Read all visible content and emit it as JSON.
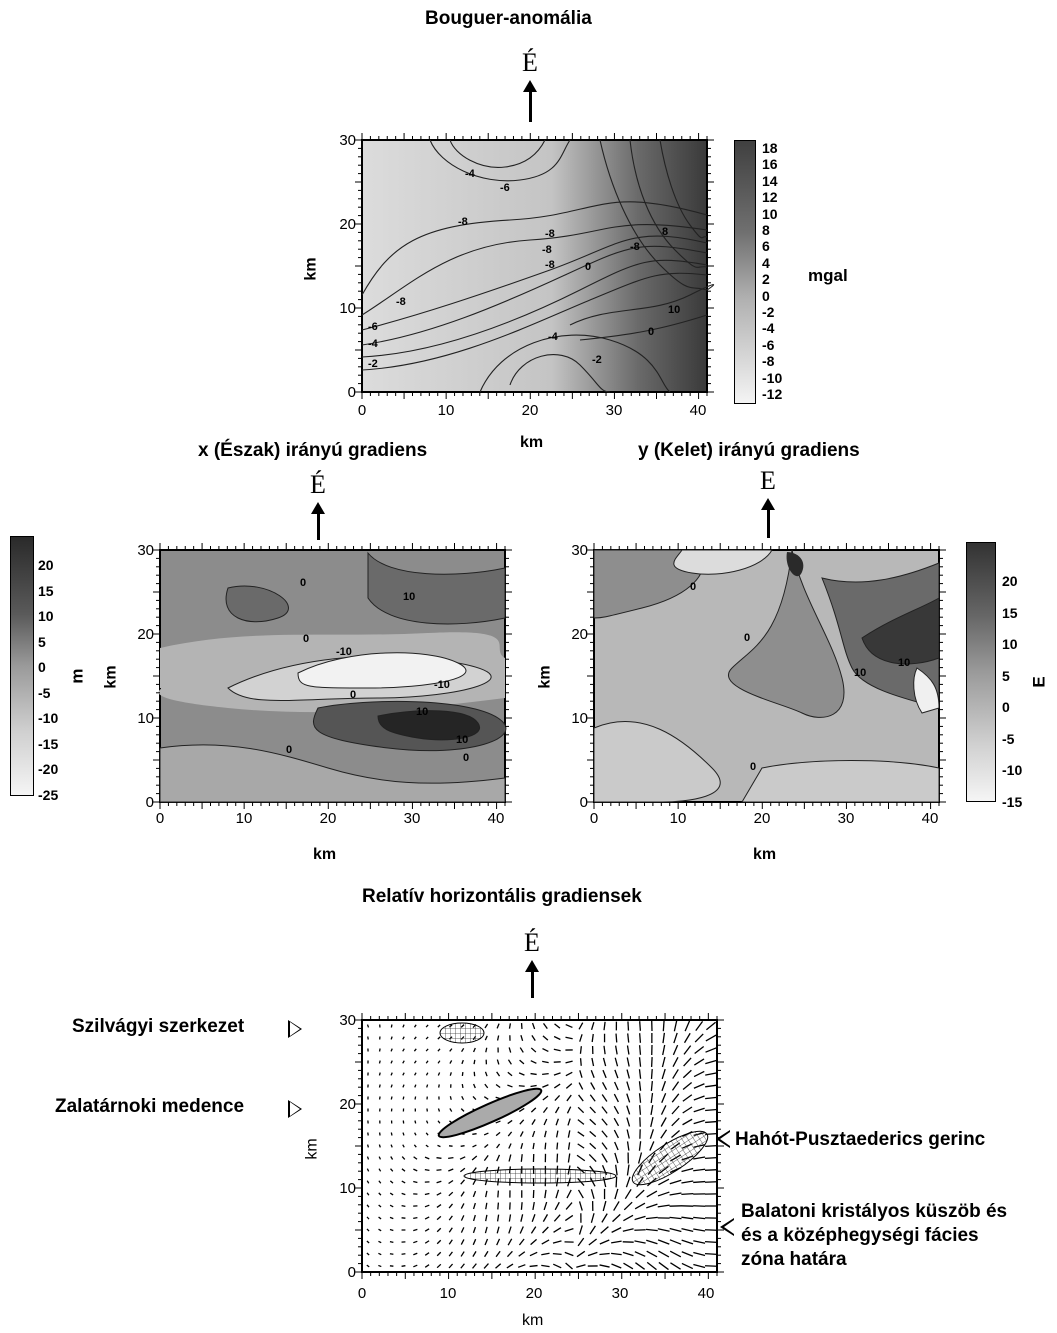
{
  "north_label": "É",
  "east_label": "E",
  "panels": {
    "bouguer": {
      "title": "Bouguer-anomália",
      "xlabel": "km",
      "ylabel": "km",
      "unit": "mgal",
      "xticks": [
        "0",
        "10",
        "20",
        "30",
        "40"
      ],
      "yticks": [
        "0",
        "10",
        "20",
        "30"
      ],
      "legend": [
        "18",
        "16",
        "14",
        "12",
        "10",
        "8",
        "6",
        "4",
        "2",
        "0",
        "-2",
        "-4",
        "-6",
        "-8",
        "-10",
        "-12"
      ],
      "contour_labels": [
        "-4",
        "-6",
        "-8",
        "-8",
        "-8",
        "-8",
        "0",
        "-8",
        "8",
        "-8",
        "-6",
        "-4",
        "-2",
        "-4",
        "-2",
        "0",
        "10"
      ]
    },
    "xgrad": {
      "title": "x (Észak) irányú gradiens",
      "xlabel": "km",
      "ylabel": "km",
      "unit": "m",
      "xticks": [
        "0",
        "10",
        "20",
        "30",
        "40"
      ],
      "yticks": [
        "0",
        "10",
        "20",
        "30"
      ],
      "legend": [
        "20",
        "15",
        "10",
        "5",
        "0",
        "-5",
        "-10",
        "-15",
        "-20",
        "-25"
      ],
      "contour_labels": [
        "0",
        "10",
        "0",
        "-10",
        "0",
        "-10",
        "10",
        "10",
        "0",
        "0"
      ]
    },
    "ygrad": {
      "title": "y (Kelet) irányú gradiens",
      "xlabel": "km",
      "ylabel": "km",
      "unit": "E",
      "xticks": [
        "0",
        "10",
        "20",
        "30",
        "40"
      ],
      "yticks": [
        "0",
        "10",
        "20",
        "30"
      ],
      "legend": [
        "20",
        "15",
        "10",
        "5",
        "0",
        "-5",
        "-10",
        "-15"
      ],
      "contour_labels": [
        "0",
        "0",
        "10",
        "10",
        "0"
      ]
    },
    "relgrad": {
      "title": "Relatív horizontális gradiensek",
      "xlabel": "km",
      "ylabel": "km",
      "xticks": [
        "0",
        "10",
        "20",
        "30",
        "40"
      ],
      "yticks": [
        "0",
        "10",
        "20",
        "30"
      ]
    }
  },
  "annotations": {
    "szilvagyi": "Szilvágyi szerkezet",
    "zalatarnoki": "Zalatárnoki medence",
    "hahot": "Hahót-Pusztaederics gerinc",
    "balaton_1": "Balatoni kristályos küszöb és",
    "balaton_2": "és a középhegységi fácies",
    "balaton_3": "zóna határa"
  },
  "chart_data": [
    {
      "type": "heatmap",
      "title": "Bouguer-anomália",
      "xlabel": "km",
      "ylabel": "km",
      "xlim": [
        0,
        41
      ],
      "ylim": [
        0,
        30
      ],
      "colorbar_label": "mgal",
      "colorbar_range": [
        -12,
        18
      ],
      "colorbar_ticks": [
        18,
        16,
        14,
        12,
        10,
        8,
        6,
        4,
        2,
        0,
        -2,
        -4,
        -6,
        -8,
        -10,
        -12
      ],
      "contours": true
    },
    {
      "type": "heatmap",
      "title": "x (Észak) irányú gradiens",
      "xlabel": "km",
      "ylabel": "km",
      "xlim": [
        0,
        41
      ],
      "ylim": [
        0,
        30
      ],
      "colorbar_label": "m",
      "colorbar_range": [
        -25,
        20
      ],
      "colorbar_ticks": [
        20,
        15,
        10,
        5,
        0,
        -5,
        -10,
        -15,
        -20,
        -25
      ],
      "contours": true
    },
    {
      "type": "heatmap",
      "title": "y (Kelet) irányú gradiens",
      "xlabel": "km",
      "ylabel": "km",
      "xlim": [
        0,
        41
      ],
      "ylim": [
        0,
        30
      ],
      "colorbar_label": "E",
      "colorbar_range": [
        -15,
        20
      ],
      "colorbar_ticks": [
        20,
        15,
        10,
        5,
        0,
        -5,
        -10,
        -15
      ],
      "contours": true
    },
    {
      "type": "scatter",
      "title": "Relatív horizontális gradiensek",
      "xlabel": "km",
      "ylabel": "km",
      "xlim": [
        0,
        41
      ],
      "ylim": [
        0,
        30
      ],
      "vector_field": true,
      "annotations": [
        "Szilvágyi szerkezet",
        "Zalatárnoki medence",
        "Hahót-Pusztaederics gerinc",
        "Balatoni kristályos küszöb és és a középhegységi fácies zóna határa"
      ]
    }
  ]
}
